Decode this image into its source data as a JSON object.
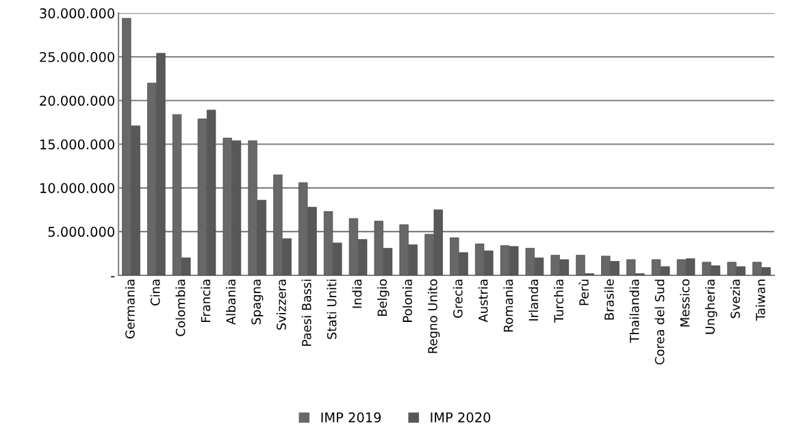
{
  "chart_data": {
    "type": "bar",
    "categories": [
      "Germania",
      "Cina",
      "Colombia",
      "Francia",
      "Albania",
      "Spagna",
      "Svizzera",
      "Paesi Bassi",
      "Stati Uniti",
      "India",
      "Belgio",
      "Polonia",
      "Regno Unito",
      "Grecia",
      "Austria",
      "Romania",
      "Irlanda",
      "Turchia",
      "Perù",
      "Brasile",
      "Thailandia",
      "Corea del Sud",
      "Messico",
      "Ungheria",
      "Svezia",
      "Taiwan"
    ],
    "series": [
      {
        "name": "IMP 2019",
        "color": "#686868",
        "values": [
          29400000,
          22000000,
          18400000,
          17900000,
          15700000,
          15400000,
          11500000,
          10600000,
          7300000,
          6500000,
          6200000,
          5800000,
          4700000,
          4300000,
          3600000,
          3400000,
          3100000,
          2300000,
          2300000,
          2200000,
          1800000,
          1800000,
          1800000,
          1500000,
          1500000,
          1500000
        ]
      },
      {
        "name": "IMP 2020",
        "color": "#585858",
        "values": [
          17100000,
          25400000,
          2000000,
          18900000,
          15400000,
          8600000,
          4200000,
          7800000,
          3700000,
          4100000,
          3100000,
          3500000,
          7500000,
          2600000,
          2800000,
          3300000,
          2000000,
          1800000,
          200000,
          1600000,
          200000,
          1000000,
          1900000,
          1100000,
          1000000,
          900000
        ]
      }
    ],
    "ylim": [
      0,
      30000000
    ],
    "yticks": [
      {
        "value": 0,
        "label": "-"
      },
      {
        "value": 5000000,
        "label": "5.000.000"
      },
      {
        "value": 10000000,
        "label": "10.000.000"
      },
      {
        "value": 15000000,
        "label": "15.000.000"
      },
      {
        "value": 20000000,
        "label": "20.000.000"
      },
      {
        "value": 25000000,
        "label": "25.000.000"
      },
      {
        "value": 30000000,
        "label": "30.000.000"
      }
    ],
    "grid": "y",
    "legend": "bottom"
  }
}
